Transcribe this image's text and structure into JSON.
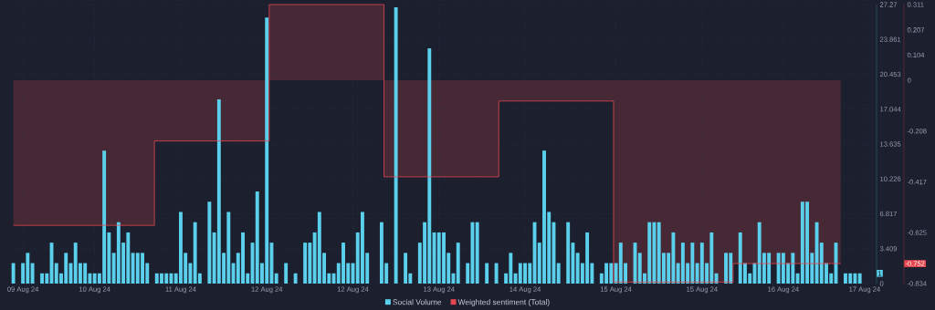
{
  "chart_data": {
    "type": "bar",
    "categories": [
      null,
      null,
      "09 Aug 24",
      null,
      null,
      null,
      null,
      null,
      null,
      null,
      null,
      null,
      null,
      null,
      null,
      null,
      null,
      "10 Aug 24",
      null,
      null,
      null,
      null,
      null,
      null,
      null,
      null,
      null,
      null,
      null,
      null,
      null,
      null,
      null,
      null,
      null,
      "11 Aug 24",
      null,
      null,
      null,
      null,
      null,
      null,
      null,
      null,
      null,
      null,
      null,
      null,
      null,
      null,
      null,
      null,
      null,
      "12 Aug 24",
      null,
      null,
      null,
      null,
      null,
      null,
      null,
      null,
      null,
      null,
      null,
      null,
      null,
      null,
      null,
      null,
      null,
      "12 Aug 24",
      null,
      null,
      null,
      null,
      null,
      null,
      null,
      null,
      null,
      null,
      null,
      null,
      null,
      null,
      null,
      null,
      null,
      "13 Aug 24",
      null,
      null,
      null,
      null,
      null,
      null,
      null,
      null,
      null,
      null,
      null,
      null,
      null,
      null,
      null,
      null,
      null,
      "14 Aug 24",
      null,
      null,
      null,
      null,
      null,
      null,
      null,
      null,
      null,
      null,
      null,
      null,
      null,
      null,
      null,
      null,
      null,
      null,
      "15 Aug 24",
      null,
      null,
      null,
      null,
      null,
      null,
      null,
      null,
      null,
      null,
      null,
      null,
      null,
      null,
      null,
      null,
      null,
      "15 Aug 24",
      null,
      null,
      null,
      null,
      null,
      null,
      null,
      null,
      null,
      null,
      null,
      null,
      null,
      null,
      null,
      null,
      "16 Aug 24",
      null,
      null,
      null,
      null,
      null,
      null,
      null,
      null,
      null,
      null,
      null,
      null,
      null,
      null,
      null,
      null,
      "17 Aug 24",
      null,
      null
    ],
    "series": [
      {
        "name": "Social Volume",
        "color": "#5bd0ec",
        "values": [
          2,
          null,
          2,
          3,
          2,
          null,
          1,
          1,
          4,
          2,
          1,
          3,
          2,
          4,
          2,
          2,
          1,
          1,
          1,
          13,
          5,
          3,
          6,
          4,
          5,
          3,
          3,
          3,
          2,
          null,
          1,
          1,
          1,
          1,
          1,
          7,
          3,
          2,
          6,
          1,
          null,
          8,
          5,
          18,
          3,
          7,
          2,
          3,
          5,
          1,
          4,
          9,
          2,
          26,
          4,
          1,
          null,
          2,
          null,
          1,
          null,
          4,
          4,
          5,
          7,
          3,
          1,
          1,
          2,
          4,
          2,
          2,
          5,
          7,
          3,
          null,
          null,
          6,
          2,
          null,
          27,
          null,
          3,
          1,
          null,
          4,
          6,
          23,
          5,
          5,
          5,
          3,
          1,
          4,
          null,
          2,
          6,
          6,
          null,
          2,
          null,
          2,
          null,
          1,
          3,
          1,
          2,
          2,
          2,
          6,
          4,
          13,
          7,
          6,
          2,
          null,
          6,
          4,
          3,
          2,
          5,
          2,
          null,
          1,
          2,
          2,
          2,
          4,
          2,
          null,
          4,
          3,
          1,
          6,
          6,
          6,
          3,
          3,
          5,
          2,
          4,
          2,
          4,
          2,
          4,
          2,
          5,
          1,
          null,
          3,
          3,
          null,
          5,
          2,
          1,
          2,
          6,
          3,
          3,
          null,
          3,
          3,
          2,
          3,
          1,
          8,
          8,
          3,
          6,
          4,
          2,
          1,
          4,
          null,
          1,
          1,
          1,
          1,
          null,
          null,
          null
        ]
      },
      {
        "name": "Weighted sentiment (Total)",
        "type": "step",
        "axis": "y2",
        "color": "#e4474f",
        "values": [
          -0.595,
          -0.595,
          -0.595,
          -0.595,
          -0.595,
          -0.595,
          -0.595,
          -0.595,
          -0.595,
          -0.595,
          -0.595,
          -0.595,
          -0.595,
          -0.595,
          -0.595,
          -0.595,
          -0.595,
          -0.595,
          -0.595,
          -0.595,
          -0.595,
          -0.595,
          -0.595,
          -0.595,
          -0.595,
          -0.595,
          -0.595,
          -0.595,
          -0.595,
          -0.595,
          -0.249,
          -0.249,
          -0.249,
          -0.249,
          -0.249,
          -0.249,
          -0.249,
          -0.249,
          -0.249,
          -0.249,
          -0.249,
          -0.249,
          -0.249,
          -0.249,
          -0.249,
          -0.249,
          -0.249,
          -0.249,
          -0.249,
          -0.249,
          -0.249,
          -0.249,
          -0.249,
          -0.249,
          0.311,
          0.311,
          0.311,
          0.311,
          0.311,
          0.311,
          0.311,
          0.311,
          0.311,
          0.311,
          0.311,
          0.311,
          0.311,
          0.311,
          0.311,
          0.311,
          0.311,
          0.311,
          0.311,
          0.311,
          0.311,
          0.311,
          0.311,
          0.311,
          -0.396,
          -0.396,
          -0.396,
          -0.396,
          -0.396,
          -0.396,
          -0.396,
          -0.396,
          -0.396,
          -0.396,
          -0.396,
          -0.396,
          -0.396,
          -0.396,
          -0.396,
          -0.396,
          -0.396,
          -0.396,
          -0.396,
          -0.396,
          -0.396,
          -0.396,
          -0.396,
          -0.396,
          -0.085,
          -0.085,
          -0.085,
          -0.085,
          -0.085,
          -0.085,
          -0.085,
          -0.085,
          -0.085,
          -0.085,
          -0.085,
          -0.085,
          -0.085,
          -0.085,
          -0.085,
          -0.085,
          -0.085,
          -0.085,
          -0.085,
          -0.085,
          -0.085,
          -0.085,
          -0.085,
          -0.085,
          -0.828,
          -0.828,
          -0.828,
          -0.828,
          -0.828,
          -0.828,
          -0.828,
          -0.828,
          -0.828,
          -0.828,
          -0.828,
          -0.828,
          -0.828,
          -0.828,
          -0.828,
          -0.828,
          -0.828,
          -0.828,
          -0.828,
          -0.828,
          -0.828,
          -0.828,
          -0.828,
          -0.828,
          -0.828,
          -0.752,
          -0.752,
          -0.752,
          -0.752,
          -0.752,
          -0.752,
          -0.752,
          -0.752,
          -0.752,
          -0.752,
          -0.752,
          -0.752,
          -0.752,
          -0.752,
          -0.752,
          -0.752,
          -0.752,
          -0.752,
          -0.752,
          -0.752,
          -0.752,
          -0.752,
          -0.752,
          null,
          null,
          null,
          null,
          null,
          null,
          null
        ]
      }
    ],
    "ylim": [
      0,
      27.27
    ],
    "yticks": [
      0,
      3.409,
      6.817,
      10.226,
      13.635,
      17.044,
      20.453,
      23.861,
      27.27
    ],
    "y2lim": [
      -0.834,
      0.311
    ],
    "y2ticks": [
      -0.834,
      -0.625,
      -0.417,
      -0.208,
      0,
      0.104,
      0.207,
      0.311
    ],
    "annotations": [
      "1",
      "-0.752"
    ],
    "grid": true,
    "legend": "bottom"
  }
}
